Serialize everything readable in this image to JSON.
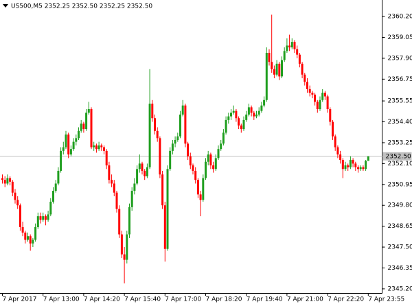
{
  "chart_data": {
    "type": "candlestick",
    "title": "US500,M5  2352.25 2352.50 2352.25 2352.50",
    "up_color": "#1f9e1f",
    "down_color": "#ff0000",
    "ylim": [
      2344.97,
      2361.11
    ],
    "yticks": [
      {
        "value": 2360.2,
        "label": "2360.20"
      },
      {
        "value": 2359.05,
        "label": "2359.05"
      },
      {
        "value": 2357.9,
        "label": "2357.90"
      },
      {
        "value": 2356.75,
        "label": "2356.75"
      },
      {
        "value": 2355.55,
        "label": "2355.55"
      },
      {
        "value": 2354.4,
        "label": "2354.40"
      },
      {
        "value": 2353.25,
        "label": "2353.25"
      },
      {
        "value": 2352.1,
        "label": "2352.10"
      },
      {
        "value": 2350.95,
        "label": "2350.95"
      },
      {
        "value": 2349.8,
        "label": "2349.80"
      },
      {
        "value": 2348.65,
        "label": "2348.65"
      },
      {
        "value": 2347.5,
        "label": "2347.50"
      },
      {
        "value": 2346.35,
        "label": "2346.35"
      },
      {
        "value": 2345.2,
        "label": "2345.20"
      }
    ],
    "last_price": {
      "value": 2352.5,
      "label": "2352.50"
    },
    "categories": [
      "7 Apr 2017",
      null,
      null,
      null,
      null,
      null,
      null,
      null,
      null,
      null,
      null,
      null,
      null,
      null,
      null,
      null,
      "7 Apr 13:00",
      null,
      null,
      null,
      null,
      null,
      null,
      null,
      null,
      null,
      null,
      null,
      null,
      null,
      null,
      null,
      "7 Apr 14:20",
      null,
      null,
      null,
      null,
      null,
      null,
      null,
      null,
      null,
      null,
      null,
      null,
      null,
      null,
      null,
      "7 Apr 15:40",
      null,
      null,
      null,
      null,
      null,
      null,
      null,
      null,
      null,
      null,
      null,
      null,
      null,
      null,
      null,
      "7 Apr 17:00",
      null,
      null,
      null,
      null,
      null,
      null,
      null,
      null,
      null,
      null,
      null,
      null,
      null,
      null,
      null,
      "7 Apr 18:20",
      null,
      null,
      null,
      null,
      null,
      null,
      null,
      null,
      null,
      null,
      null,
      null,
      null,
      null,
      null,
      "7 Apr 19:40",
      null,
      null,
      null,
      null,
      null,
      null,
      null,
      null,
      null,
      null,
      null,
      null,
      null,
      null,
      null,
      "7 Apr 21:00",
      null,
      null,
      null,
      null,
      null,
      null,
      null,
      null,
      null,
      null,
      null,
      null,
      null,
      null,
      null,
      "7 Apr 22:20",
      null,
      null,
      null,
      null,
      null,
      null,
      null,
      null,
      null,
      null,
      null,
      null,
      null,
      null,
      null,
      "7 Apr 23:55"
    ],
    "ohlc": [
      [
        2351.3,
        2351.5,
        2351.0,
        2351.2
      ],
      [
        2351.2,
        2351.4,
        2350.8,
        2351.0
      ],
      [
        2351.0,
        2351.5,
        2350.9,
        2351.3
      ],
      [
        2351.3,
        2351.4,
        2350.9,
        2351.1
      ],
      [
        2351.1,
        2351.2,
        2350.3,
        2350.5
      ],
      [
        2350.5,
        2350.7,
        2349.9,
        2350.1
      ],
      [
        2350.1,
        2350.3,
        2349.6,
        2349.8
      ],
      [
        2349.8,
        2349.9,
        2348.4,
        2348.6
      ],
      [
        2348.6,
        2348.9,
        2348.1,
        2348.3
      ],
      [
        2348.3,
        2348.4,
        2347.7,
        2347.9
      ],
      [
        2347.9,
        2348.3,
        2347.8,
        2348.1
      ],
      [
        2348.1,
        2348.2,
        2347.3,
        2347.7
      ],
      [
        2347.7,
        2348.0,
        2347.5,
        2347.9
      ],
      [
        2347.9,
        2348.8,
        2347.8,
        2348.6
      ],
      [
        2348.6,
        2349.4,
        2348.5,
        2349.2
      ],
      [
        2349.2,
        2349.4,
        2348.8,
        2349.0
      ],
      [
        2349.0,
        2349.4,
        2348.9,
        2349.2
      ],
      [
        2349.2,
        2349.3,
        2348.7,
        2349.0
      ],
      [
        2349.0,
        2349.5,
        2348.9,
        2349.3
      ],
      [
        2349.3,
        2350.2,
        2349.2,
        2350.0
      ],
      [
        2350.0,
        2350.8,
        2349.9,
        2350.6
      ],
      [
        2350.6,
        2351.2,
        2350.5,
        2351.0
      ],
      [
        2351.0,
        2351.9,
        2350.9,
        2351.7
      ],
      [
        2351.7,
        2353.0,
        2351.6,
        2352.8
      ],
      [
        2352.8,
        2353.3,
        2352.6,
        2353.0
      ],
      [
        2353.0,
        2353.9,
        2352.9,
        2353.7
      ],
      [
        2353.7,
        2353.8,
        2352.4,
        2352.6
      ],
      [
        2352.6,
        2353.1,
        2352.5,
        2352.9
      ],
      [
        2352.9,
        2353.5,
        2352.8,
        2353.3
      ],
      [
        2353.3,
        2353.7,
        2353.1,
        2353.5
      ],
      [
        2353.5,
        2354.1,
        2353.4,
        2353.9
      ],
      [
        2353.9,
        2354.5,
        2353.8,
        2354.3
      ],
      [
        2354.3,
        2354.4,
        2353.8,
        2354.0
      ],
      [
        2354.0,
        2355.1,
        2353.9,
        2354.9
      ],
      [
        2354.9,
        2355.5,
        2354.8,
        2355.1
      ],
      [
        2355.1,
        2355.2,
        2352.9,
        2353.0
      ],
      [
        2353.0,
        2353.3,
        2352.8,
        2353.1
      ],
      [
        2353.1,
        2353.2,
        2352.7,
        2352.9
      ],
      [
        2352.9,
        2353.3,
        2352.8,
        2353.1
      ],
      [
        2353.1,
        2353.2,
        2352.8,
        2353.0
      ],
      [
        2353.0,
        2353.1,
        2352.6,
        2352.8
      ],
      [
        2352.8,
        2352.9,
        2351.8,
        2352.0
      ],
      [
        2352.0,
        2352.2,
        2351.0,
        2351.2
      ],
      [
        2351.2,
        2351.5,
        2350.8,
        2351.0
      ],
      [
        2351.0,
        2351.2,
        2350.3,
        2350.5
      ],
      [
        2350.5,
        2350.6,
        2349.4,
        2349.6
      ],
      [
        2349.6,
        2349.8,
        2348.0,
        2348.2
      ],
      [
        2348.2,
        2348.4,
        2346.9,
        2347.1
      ],
      [
        2347.1,
        2347.5,
        2345.5,
        2346.8
      ],
      [
        2346.8,
        2348.4,
        2346.6,
        2348.2
      ],
      [
        2348.2,
        2349.9,
        2348.0,
        2349.7
      ],
      [
        2349.7,
        2350.8,
        2349.5,
        2350.6
      ],
      [
        2350.6,
        2351.3,
        2350.4,
        2351.0
      ],
      [
        2351.0,
        2352.0,
        2350.9,
        2351.8
      ],
      [
        2351.8,
        2352.6,
        2351.6,
        2352.1
      ],
      [
        2352.1,
        2352.2,
        2351.5,
        2351.7
      ],
      [
        2351.7,
        2351.8,
        2351.2,
        2351.4
      ],
      [
        2351.4,
        2352.1,
        2351.3,
        2351.9
      ],
      [
        2351.9,
        2357.3,
        2351.8,
        2355.4
      ],
      [
        2355.4,
        2355.6,
        2354.4,
        2354.6
      ],
      [
        2354.6,
        2354.8,
        2353.7,
        2353.9
      ],
      [
        2353.9,
        2354.1,
        2353.3,
        2353.5
      ],
      [
        2353.5,
        2353.6,
        2351.3,
        2351.5
      ],
      [
        2351.5,
        2351.7,
        2349.6,
        2349.8
      ],
      [
        2349.8,
        2350.0,
        2346.7,
        2347.4
      ],
      [
        2347.4,
        2352.0,
        2347.3,
        2351.8
      ],
      [
        2351.8,
        2353.0,
        2351.7,
        2352.8
      ],
      [
        2352.8,
        2353.4,
        2352.6,
        2353.2
      ],
      [
        2353.2,
        2353.6,
        2353.0,
        2353.4
      ],
      [
        2353.4,
        2353.8,
        2353.3,
        2353.6
      ],
      [
        2353.6,
        2355.0,
        2353.5,
        2354.8
      ],
      [
        2354.8,
        2355.6,
        2354.7,
        2355.3
      ],
      [
        2355.3,
        2355.4,
        2353.0,
        2353.2
      ],
      [
        2353.2,
        2353.3,
        2352.3,
        2352.5
      ],
      [
        2352.5,
        2352.7,
        2351.8,
        2352.0
      ],
      [
        2352.0,
        2352.1,
        2351.5,
        2351.7
      ],
      [
        2351.7,
        2351.9,
        2351.0,
        2351.2
      ],
      [
        2351.2,
        2351.3,
        2350.2,
        2350.4
      ],
      [
        2350.4,
        2350.6,
        2349.2,
        2350.1
      ],
      [
        2350.1,
        2351.5,
        2350.0,
        2351.3
      ],
      [
        2351.3,
        2352.4,
        2351.2,
        2352.2
      ],
      [
        2352.2,
        2352.8,
        2352.0,
        2352.6
      ],
      [
        2352.6,
        2352.7,
        2351.8,
        2352.0
      ],
      [
        2352.0,
        2352.2,
        2351.6,
        2351.8
      ],
      [
        2351.8,
        2352.6,
        2351.7,
        2352.4
      ],
      [
        2352.4,
        2353.1,
        2352.3,
        2352.9
      ],
      [
        2352.9,
        2353.4,
        2352.8,
        2353.2
      ],
      [
        2353.2,
        2354.0,
        2353.1,
        2353.8
      ],
      [
        2353.8,
        2354.7,
        2353.7,
        2354.5
      ],
      [
        2354.5,
        2354.9,
        2354.3,
        2354.7
      ],
      [
        2354.7,
        2355.1,
        2354.5,
        2354.9
      ],
      [
        2354.9,
        2355.3,
        2354.8,
        2355.0
      ],
      [
        2355.0,
        2355.1,
        2354.4,
        2354.6
      ],
      [
        2354.6,
        2354.7,
        2354.0,
        2354.2
      ],
      [
        2354.2,
        2354.3,
        2353.8,
        2354.0
      ],
      [
        2354.0,
        2354.7,
        2353.9,
        2354.5
      ],
      [
        2354.5,
        2355.0,
        2354.4,
        2354.8
      ],
      [
        2354.8,
        2355.4,
        2354.7,
        2355.2
      ],
      [
        2355.2,
        2355.3,
        2354.7,
        2354.9
      ],
      [
        2354.9,
        2355.0,
        2354.5,
        2354.7
      ],
      [
        2354.7,
        2355.0,
        2354.6,
        2354.8
      ],
      [
        2354.8,
        2355.2,
        2354.7,
        2355.0
      ],
      [
        2355.0,
        2355.5,
        2354.9,
        2355.3
      ],
      [
        2355.3,
        2355.8,
        2355.2,
        2355.6
      ],
      [
        2355.6,
        2358.5,
        2355.5,
        2358.2
      ],
      [
        2358.2,
        2358.4,
        2357.5,
        2357.7
      ],
      [
        2357.7,
        2360.3,
        2357.1,
        2357.3
      ],
      [
        2357.3,
        2357.5,
        2356.8,
        2357.0
      ],
      [
        2357.0,
        2357.8,
        2356.9,
        2357.6
      ],
      [
        2357.6,
        2357.7,
        2356.7,
        2356.9
      ],
      [
        2356.9,
        2358.0,
        2356.8,
        2357.8
      ],
      [
        2357.8,
        2358.5,
        2357.7,
        2358.3
      ],
      [
        2358.3,
        2359.0,
        2358.2,
        2358.6
      ],
      [
        2358.6,
        2359.2,
        2358.3,
        2358.5
      ],
      [
        2358.5,
        2359.0,
        2358.4,
        2358.8
      ],
      [
        2358.8,
        2358.9,
        2358.2,
        2358.4
      ],
      [
        2358.4,
        2358.6,
        2357.9,
        2358.1
      ],
      [
        2358.1,
        2358.2,
        2357.4,
        2357.6
      ],
      [
        2357.6,
        2357.7,
        2356.8,
        2357.0
      ],
      [
        2357.0,
        2357.1,
        2356.4,
        2356.6
      ],
      [
        2356.6,
        2356.8,
        2356.0,
        2356.2
      ],
      [
        2356.2,
        2356.4,
        2355.8,
        2356.0
      ],
      [
        2356.0,
        2356.1,
        2355.7,
        2355.9
      ],
      [
        2355.9,
        2356.0,
        2355.3,
        2355.5
      ],
      [
        2355.5,
        2355.6,
        2354.9,
        2355.1
      ],
      [
        2355.1,
        2355.8,
        2355.0,
        2355.6
      ],
      [
        2355.6,
        2356.2,
        2355.5,
        2356.0
      ],
      [
        2356.0,
        2356.1,
        2355.6,
        2355.8
      ],
      [
        2355.8,
        2355.9,
        2354.9,
        2355.1
      ],
      [
        2355.1,
        2355.2,
        2354.2,
        2354.4
      ],
      [
        2354.4,
        2354.5,
        2353.4,
        2353.6
      ],
      [
        2353.6,
        2353.7,
        2352.8,
        2353.0
      ],
      [
        2353.0,
        2353.1,
        2352.4,
        2352.6
      ],
      [
        2352.6,
        2352.8,
        2352.1,
        2352.3
      ],
      [
        2352.3,
        2352.4,
        2351.3,
        2351.8
      ],
      [
        2351.8,
        2352.2,
        2351.7,
        2352.0
      ],
      [
        2352.0,
        2352.1,
        2351.7,
        2351.9
      ],
      [
        2351.9,
        2352.5,
        2351.8,
        2352.3
      ],
      [
        2352.3,
        2352.4,
        2351.9,
        2352.1
      ],
      [
        2352.1,
        2352.2,
        2351.7,
        2351.9
      ],
      [
        2351.9,
        2352.0,
        2351.6,
        2351.8
      ],
      [
        2351.8,
        2352.0,
        2351.7,
        2351.9
      ],
      [
        2351.9,
        2352.0,
        2351.7,
        2351.8
      ],
      [
        2351.8,
        2352.3,
        2351.7,
        2352.25
      ],
      [
        2352.25,
        2352.5,
        2352.25,
        2352.5
      ]
    ]
  }
}
